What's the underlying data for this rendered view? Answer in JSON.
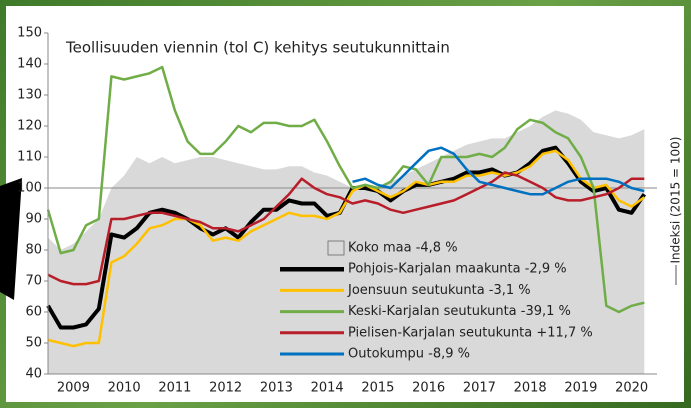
{
  "chart_data": {
    "type": "line",
    "title": "Teollisuuden viennin (tol C) kehitys seutukunnittain",
    "y_label": "Indeksi (2015 = 100)",
    "x": [
      2009,
      2009.25,
      2009.5,
      2009.75,
      2010,
      2010.25,
      2010.5,
      2010.75,
      2011,
      2011.25,
      2011.5,
      2011.75,
      2012,
      2012.25,
      2012.5,
      2012.75,
      2013,
      2013.25,
      2013.5,
      2013.75,
      2014,
      2014.25,
      2014.5,
      2014.75,
      2015,
      2015.25,
      2015.5,
      2015.75,
      2016,
      2016.25,
      2016.5,
      2016.75,
      2017,
      2017.25,
      2017.5,
      2017.75,
      2018,
      2018.25,
      2018.5,
      2018.75,
      2019,
      2019.25,
      2019.5,
      2019.75,
      2020,
      2020.25,
      2020.5,
      2020.75
    ],
    "series": [
      {
        "name": "Koko maa -4,8 %",
        "kind": "area",
        "color": "#d9d9d9",
        "values": [
          84,
          80,
          82,
          86,
          90,
          100,
          104,
          110,
          108,
          110,
          108,
          109,
          110,
          110,
          109,
          108,
          107,
          106,
          106,
          107,
          107,
          105,
          104,
          102,
          100,
          100,
          100,
          102,
          104,
          106,
          108,
          110,
          112,
          114,
          115,
          116,
          116,
          118,
          120,
          123,
          125,
          124,
          122,
          118,
          117,
          116,
          117,
          119
        ]
      },
      {
        "name": "Pohjois-Karjalan maakunta -2,9 %",
        "kind": "line",
        "color": "#000000",
        "width": 4,
        "values": [
          62,
          55,
          55,
          56,
          61,
          85,
          84,
          87,
          92,
          93,
          92,
          90,
          87,
          85,
          87,
          84,
          89,
          93,
          93,
          96,
          95,
          95,
          91,
          92,
          100,
          100,
          99,
          96,
          99,
          101,
          101,
          102,
          103,
          105,
          105,
          106,
          104,
          105,
          108,
          112,
          113,
          108,
          102,
          99,
          100,
          93,
          92,
          98
        ]
      },
      {
        "name": "Joensuun seutukunta -3,1 %",
        "kind": "line",
        "color": "#ffc000",
        "width": 2.5,
        "values": [
          51,
          50,
          49,
          50,
          50,
          76,
          78,
          82,
          87,
          88,
          90,
          90,
          88,
          83,
          84,
          83,
          86,
          88,
          90,
          92,
          91,
          91,
          90,
          92,
          99,
          101,
          99,
          97,
          99,
          102,
          101,
          102,
          102,
          104,
          104,
          105,
          104,
          105,
          107,
          111,
          112,
          109,
          103,
          100,
          101,
          96,
          94,
          97
        ]
      },
      {
        "name": "Keski-Karjalan seutukunta -39,1 %",
        "kind": "line",
        "color": "#70ad47",
        "width": 2.5,
        "values": [
          93,
          79,
          80,
          88,
          90,
          136,
          135,
          136,
          137,
          139,
          125,
          115,
          111,
          111,
          115,
          120,
          118,
          121,
          121,
          120,
          120,
          122,
          115,
          107,
          100,
          101,
          100,
          102,
          107,
          106,
          101,
          110,
          110,
          110,
          111,
          110,
          113,
          119,
          122,
          121,
          118,
          116,
          110,
          100,
          62,
          60,
          62,
          63
        ]
      },
      {
        "name": "Pielisen-Karjalan seutukunta +11,7 %",
        "kind": "line",
        "color": "#b81e2a",
        "width": 2.5,
        "values": [
          72,
          70,
          69,
          69,
          70,
          90,
          90,
          91,
          92,
          92,
          91,
          90,
          89,
          87,
          87,
          86,
          88,
          90,
          94,
          98,
          103,
          100,
          98,
          97,
          95,
          96,
          95,
          93,
          92,
          93,
          94,
          95,
          96,
          98,
          100,
          102,
          105,
          104,
          102,
          100,
          97,
          96,
          96,
          97,
          98,
          100,
          103,
          103
        ]
      },
      {
        "name": "Outokumpu -8,9 %",
        "kind": "line",
        "color": "#0070c0",
        "width": 2.5,
        "values": [
          null,
          null,
          null,
          null,
          null,
          null,
          null,
          null,
          null,
          null,
          null,
          null,
          null,
          null,
          null,
          null,
          null,
          null,
          null,
          null,
          null,
          null,
          null,
          null,
          102,
          103,
          101,
          100,
          104,
          108,
          112,
          113,
          111,
          106,
          102,
          101,
          100,
          99,
          98,
          98,
          100,
          102,
          103,
          103,
          103,
          102,
          100,
          99
        ]
      }
    ],
    "reference_line": 100,
    "xlim": [
      2009,
      2021
    ],
    "xticks": [
      {
        "value": 2009.5,
        "label": "2009"
      },
      {
        "value": 2010.5,
        "label": "2010"
      },
      {
        "value": 2011.5,
        "label": "2011"
      },
      {
        "value": 2012.5,
        "label": "2012"
      },
      {
        "value": 2013.5,
        "label": "2013"
      },
      {
        "value": 2014.5,
        "label": "2014"
      },
      {
        "value": 2015.5,
        "label": "2015"
      },
      {
        "value": 2016.5,
        "label": "2016"
      },
      {
        "value": 2017.5,
        "label": "2017"
      },
      {
        "value": 2018.5,
        "label": "2018"
      },
      {
        "value": 2019.5,
        "label": "2019"
      },
      {
        "value": 2020.5,
        "label": "2020"
      }
    ],
    "ylim": [
      40,
      150
    ],
    "yticks": [
      40,
      50,
      60,
      70,
      80,
      90,
      100,
      110,
      120,
      130,
      140,
      150
    ]
  }
}
